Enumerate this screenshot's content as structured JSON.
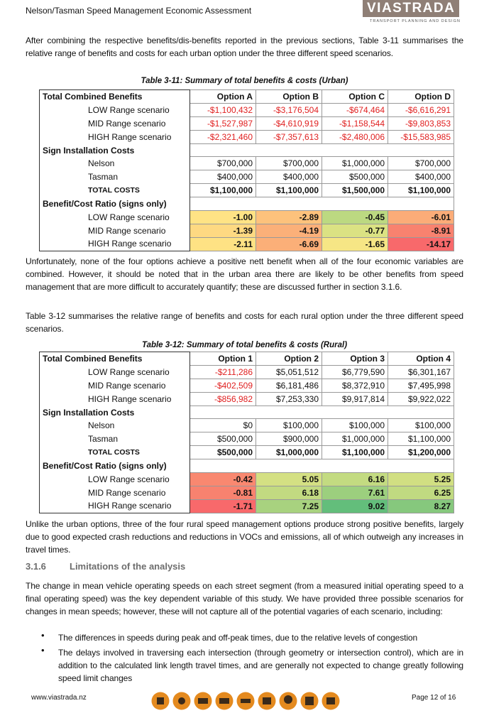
{
  "header": {
    "title": "Nelson/Tasman Speed Management Economic Assessment",
    "logo": "VIASTRADA",
    "logo_tagline": "TRANSPORT PLANNING AND DESIGN"
  },
  "paragraphs": [
    "After combining the respective benefits/dis-benefits reported in the previous sections, Table 3-11 summarises the relative range of benefits and costs for each urban option under the three different speed scenarios.",
    "Unfortunately, none of the four options achieve a positive nett benefit when all of the four economic variables are combined. However, it should be noted that in the urban area there are likely to be other benefits from speed management that are more difficult to accurately quantify; these are discussed further in section 3.1.6.",
    "Table 3-12 summarises the relative range of benefits and costs for each rural option under the three different speed scenarios.",
    "Unlike the urban options, three of the four rural speed management options produce strong positive benefits, largely due to good expected crash reductions and reductions in VOCs and emissions, all of which outweigh any increases in travel times.",
    "The change in mean vehicle operating speeds on each street segment (from a measured initial operating speed to a final operating speed) was the key dependent variable of this study. We have provided three possible scenarios for changes in mean speeds; however, these will not capture all of the potential vagaries of each scenario, including:"
  ],
  "table1": {
    "caption": "Table 3-11: Summary of total benefits & costs (Urban)",
    "header": [
      "Total Combined Benefits",
      "Option A",
      "Option B",
      "Option C",
      "Option D"
    ],
    "benefit_rows": [
      [
        "LOW Range scenario",
        "-$1,100,432",
        "-$3,176,504",
        "-$674,464",
        "-$6,616,291"
      ],
      [
        "MID Range scenario",
        "-$1,527,987",
        "-$4,610,919",
        "-$1,158,544",
        "-$9,803,853"
      ],
      [
        "HIGH Range scenario",
        "-$2,321,460",
        "-$7,357,613",
        "-$2,480,006",
        "-$15,583,985"
      ]
    ],
    "costs_title": "Sign Installation Costs",
    "cost_rows": [
      [
        "Nelson",
        "$700,000",
        "$700,000",
        "$1,000,000",
        "$700,000"
      ],
      [
        "Tasman",
        "$400,000",
        "$400,000",
        "$500,000",
        "$400,000"
      ]
    ],
    "total_row": [
      "TOTAL COSTS",
      "$1,100,000",
      "$1,100,000",
      "$1,500,000",
      "$1,100,000"
    ],
    "ratio_title": "Benefit/Cost Ratio (signs only)",
    "ratio_rows": [
      [
        "LOW Range scenario",
        "-1.00",
        "-2.89",
        "-0.45",
        "-6.01"
      ],
      [
        "MID Range scenario",
        "-1.39",
        "-4.19",
        "-0.77",
        "-8.91"
      ],
      [
        "HIGH Range scenario",
        "-2.11",
        "-6.69",
        "-1.65",
        "-14.17"
      ]
    ],
    "ratio_colors": [
      [
        "#ffe385",
        "#fdc27c",
        "#bcd981",
        "#fbac78"
      ],
      [
        "#fed982",
        "#fbb079",
        "#dbe283",
        "#f8826f"
      ],
      [
        "#fee284",
        "#fbaf78",
        "#f6e685",
        "#f8696b"
      ]
    ]
  },
  "table2": {
    "caption": "Table 3-12: Summary of total benefits & costs (Rural)",
    "header": [
      "Total Combined Benefits",
      "Option 1",
      "Option 2",
      "Option 3",
      "Option 4"
    ],
    "benefit_rows": [
      [
        "LOW Range scenario",
        "-$211,286",
        "$5,051,512",
        "$6,779,590",
        "$6,301,167"
      ],
      [
        "MID Range scenario",
        "-$402,509",
        "$6,181,486",
        "$8,372,910",
        "$7,495,998"
      ],
      [
        "HIGH Range scenario",
        "-$856,982",
        "$7,253,330",
        "$9,917,814",
        "$9,922,022"
      ]
    ],
    "costs_title": "Sign Installation Costs",
    "cost_rows": [
      [
        "Nelson",
        "$0",
        "$100,000",
        "$100,000",
        "$100,000"
      ],
      [
        "Tasman",
        "$500,000",
        "$900,000",
        "$1,000,000",
        "$1,100,000"
      ]
    ],
    "total_row": [
      "TOTAL COSTS",
      "$500,000",
      "$1,000,000",
      "$1,100,000",
      "$1,200,000"
    ],
    "ratio_title": "Benefit/Cost Ratio (signs only)",
    "ratio_rows": [
      [
        "LOW Range scenario",
        "-0.42",
        "5.05",
        "6.16",
        "5.25"
      ],
      [
        "MID Range scenario",
        "-0.81",
        "6.18",
        "7.61",
        "6.25"
      ],
      [
        "HIGH Range scenario",
        "-1.71",
        "7.25",
        "9.02",
        "8.27"
      ]
    ],
    "ratio_colors": [
      [
        "#f98870",
        "#d4e083",
        "#c3db81",
        "#d1df82"
      ],
      [
        "#f8826f",
        "#c2da81",
        "#9ccf7e",
        "#c0da81"
      ],
      [
        "#f8696b",
        "#a8d27f",
        "#63be7b",
        "#86c87d"
      ]
    ]
  },
  "section": {
    "number": "3.1.6",
    "title": "Limitations of the analysis"
  },
  "bullets": [
    "The differences in speeds during peak and off-peak times, due to the relative levels of congestion",
    "The delays involved in traversing each intersection (through geometry or intersection control), which are in addition to the calculated link length travel times, and are generally not expected to change greatly following speed limit changes"
  ],
  "footer": {
    "website": "www.viastrada.nz",
    "page": "Page 12 of 16"
  }
}
